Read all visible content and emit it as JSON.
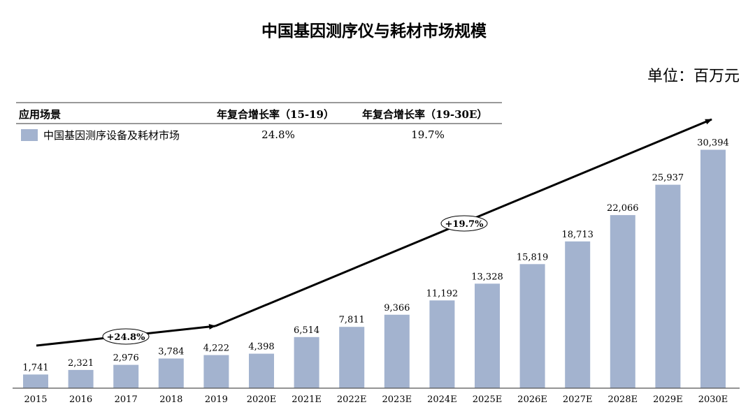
{
  "chart_data": {
    "type": "bar",
    "title": "中国基因测序仪与耗材市场规模",
    "unit_label": "单位：百万元",
    "categories": [
      "2015",
      "2016",
      "2017",
      "2018",
      "2019",
      "2020E",
      "2021E",
      "2022E",
      "2023E",
      "2024E",
      "2025E",
      "2026E",
      "2027E",
      "2028E",
      "2029E",
      "2030E"
    ],
    "series": [
      {
        "name": "中国基因测序设备及耗材市场",
        "values": [
          1741,
          2321,
          2976,
          3784,
          4222,
          4398,
          6514,
          7811,
          9366,
          11192,
          13328,
          15819,
          18713,
          22066,
          25937,
          30394
        ],
        "color": "#a3b3cf"
      }
    ],
    "value_labels": [
      "1,741",
      "2,321",
      "2,976",
      "3,784",
      "4,222",
      "4,398",
      "6,514",
      "7,811",
      "9,366",
      "11,192",
      "13,328",
      "15,819",
      "18,713",
      "22,066",
      "25,937",
      "30,394"
    ],
    "ylim": [
      0,
      34000
    ],
    "grid": false,
    "legend_table": {
      "headers": [
        "应用场景",
        "年复合增长率（15-19）",
        "年复合增长率（19-30E）"
      ],
      "rows": [
        {
          "label": "中国基因测序设备及耗材市场",
          "cagr_15_19": "24.8%",
          "cagr_19_30": "19.7%"
        }
      ]
    },
    "annotations": [
      {
        "text": "+24.8%"
      },
      {
        "text": "+19.7%"
      }
    ]
  },
  "colors": {
    "bar": "#a3b3cf",
    "axis": "#555555",
    "arrow": "#000000",
    "text": "#111111"
  }
}
